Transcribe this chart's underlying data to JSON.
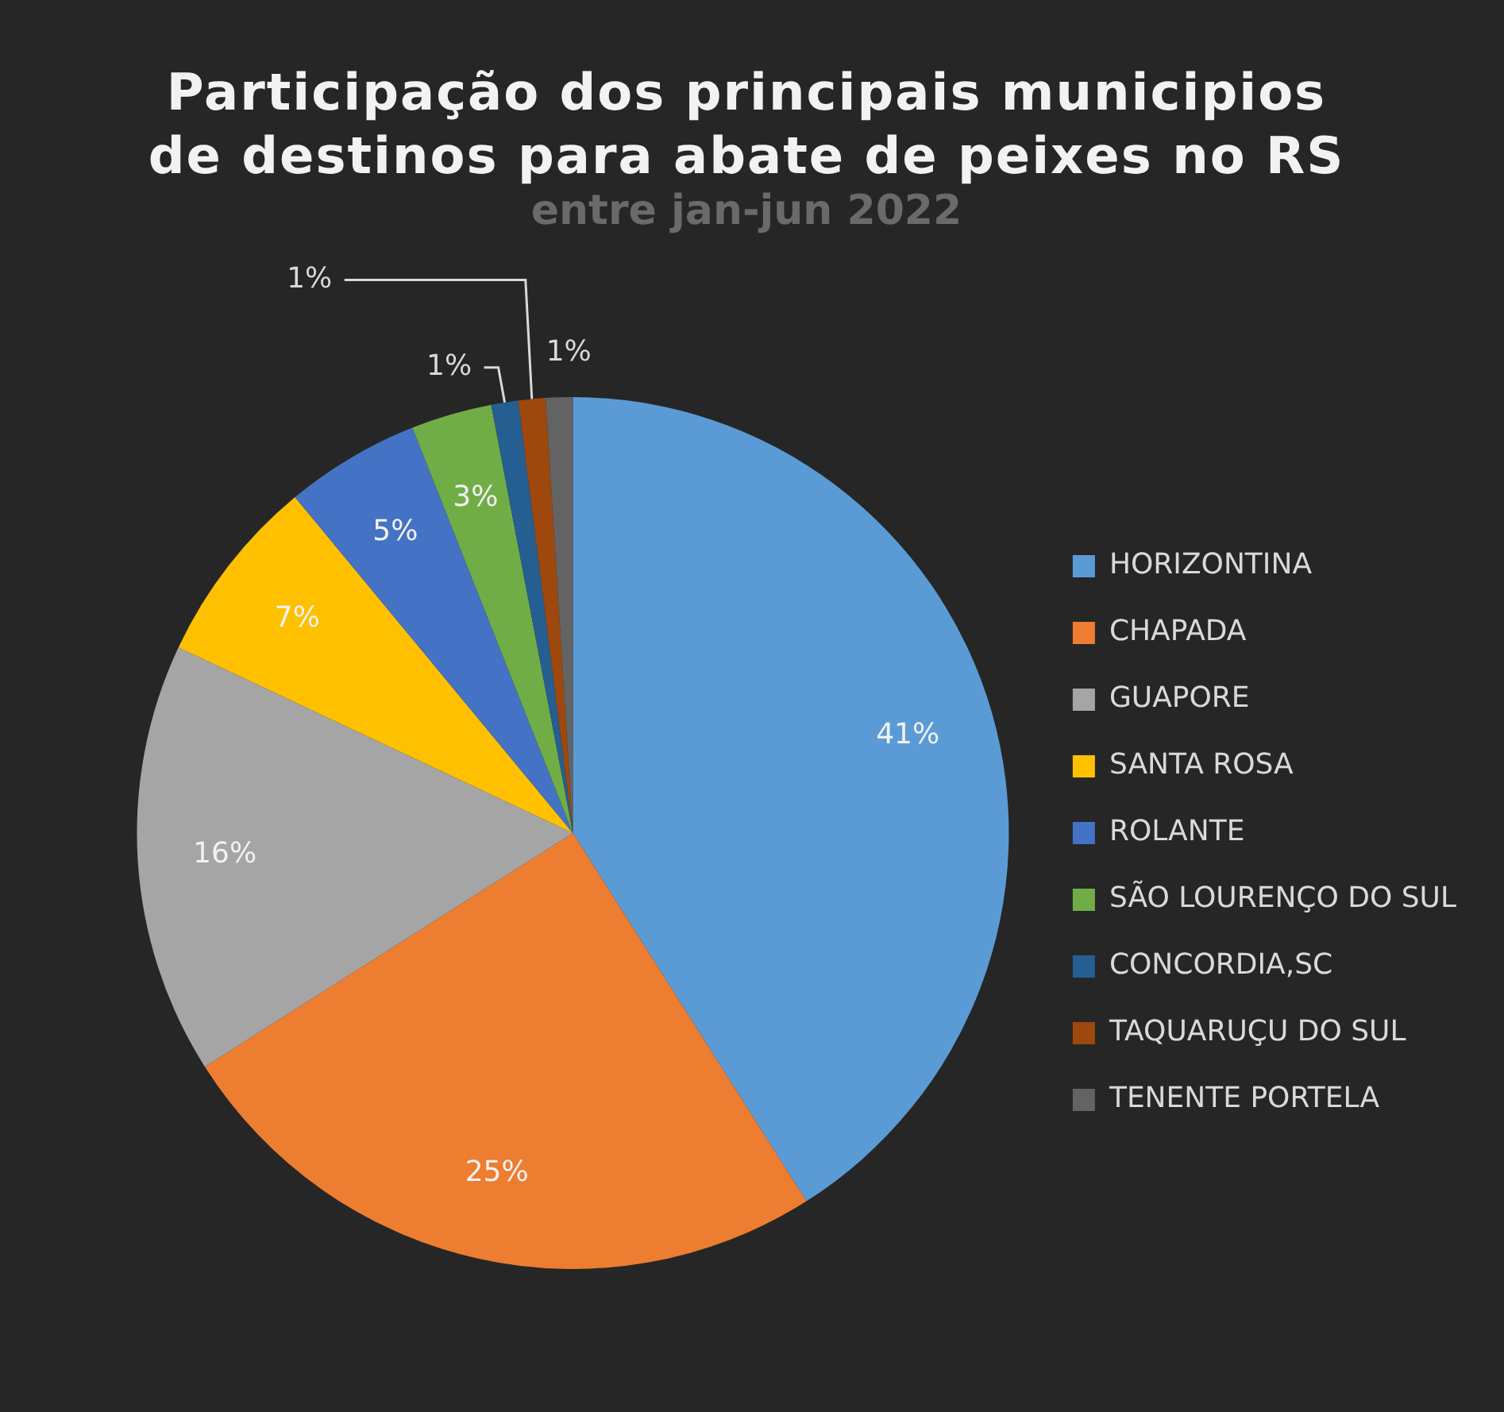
{
  "chart_data": {
    "type": "pie",
    "title": "Participação dos principais municipios de destinos para abate de peixes no RS",
    "subtitle": "entre jan-jun 2022",
    "categories": [
      "HORIZONTINA",
      "CHAPADA",
      "GUAPORE",
      "SANTA ROSA",
      "ROLANTE",
      "SÃO LOURENÇO DO SUL",
      "CONCORDIA,SC",
      "TAQUARUÇU DO SUL",
      "TENENTE PORTELA"
    ],
    "values": [
      41,
      25,
      16,
      7,
      5,
      3,
      1,
      1,
      1
    ],
    "colors": [
      "#5b9bd5",
      "#ed7d31",
      "#a5a5a5",
      "#ffc000",
      "#4472c4",
      "#70ad47",
      "#255e91",
      "#9e480e",
      "#636363"
    ],
    "value_labels": [
      "41%",
      "25%",
      "16%",
      "7%",
      "5%",
      "3%",
      "1%",
      "1%",
      "1%"
    ],
    "legend": "right"
  }
}
